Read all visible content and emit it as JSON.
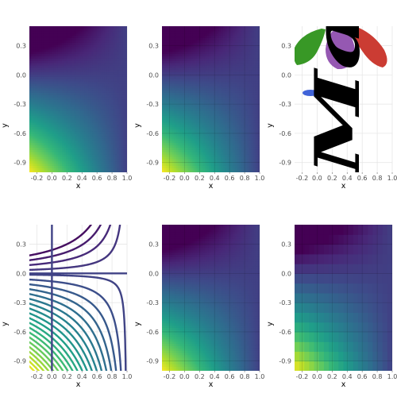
{
  "chart_data": [
    {
      "type": "heatmap",
      "panel": "raster",
      "function": "z = x*y - y",
      "xlim": [
        -0.3,
        1.0
      ],
      "ylim": [
        -1.0,
        0.5
      ],
      "xticks": [
        "-0.2",
        "0.0",
        "0.2",
        "0.4",
        "0.6",
        "0.8",
        "1.0"
      ],
      "yticks": [
        "0.3",
        "0.0",
        "-0.3",
        "-0.6",
        "-0.9"
      ],
      "xlabel": "x",
      "ylabel": "y",
      "colormap": "viridis",
      "grid": true
    },
    {
      "type": "heatmap",
      "panel": "raster-with-grid-overlay",
      "function": "z = x*y - y",
      "xlim": [
        -0.3,
        1.0
      ],
      "ylim": [
        -1.0,
        0.5
      ],
      "xticks": [
        "-0.2",
        "0.0",
        "0.2",
        "0.4",
        "0.6",
        "0.8",
        "1.0"
      ],
      "yticks": [
        "0.3",
        "0.0",
        "-0.3",
        "-0.6",
        "-0.9"
      ],
      "xlabel": "x",
      "ylabel": "y",
      "colormap": "viridis",
      "grid": true
    },
    {
      "type": "image",
      "panel": "logo",
      "xlim": [
        -0.3,
        1.0
      ],
      "ylim": [
        -1.0,
        0.5
      ],
      "xticks": [
        "-0.2",
        "0.0",
        "0.2",
        "0.4",
        "0.6",
        "0.8",
        "1.0"
      ],
      "yticks": [
        "0.3",
        "0.0",
        "-0.3",
        "-0.6",
        "-0.9"
      ],
      "xlabel": "x",
      "ylabel": "y",
      "logo_text": "Makie",
      "grid": true
    },
    {
      "type": "contour",
      "panel": "contour",
      "function": "z = x*y - y",
      "levels": 24,
      "xlim": [
        -0.3,
        1.0
      ],
      "ylim": [
        -1.0,
        0.5
      ],
      "xticks": [
        "-0.2",
        "0.0",
        "0.2",
        "0.4",
        "0.6",
        "0.8",
        "1.0"
      ],
      "yticks": [
        "0.3",
        "0.0",
        "-0.3",
        "-0.6",
        "-0.9"
      ],
      "xlabel": "x",
      "ylabel": "y",
      "colormap": "viridis",
      "grid": true
    },
    {
      "type": "heatmap",
      "panel": "smooth",
      "function": "z = x*y - y",
      "xlim": [
        -0.3,
        1.0
      ],
      "ylim": [
        -1.0,
        0.5
      ],
      "xticks": [
        "-0.2",
        "0.0",
        "0.2",
        "0.4",
        "0.6",
        "0.8",
        "1.0"
      ],
      "yticks": [
        "0.3",
        "0.0",
        "-0.3",
        "-0.6",
        "-0.9"
      ],
      "xlabel": "x",
      "ylabel": "y",
      "colormap": "viridis",
      "grid": true
    },
    {
      "type": "heatmap",
      "panel": "blocky",
      "function": "z = x*y - y",
      "cells": [
        20,
        15
      ],
      "xlim": [
        -0.3,
        1.0
      ],
      "ylim": [
        -1.0,
        0.5
      ],
      "xticks": [
        "-0.2",
        "0.0",
        "0.2",
        "0.4",
        "0.6",
        "0.8",
        "1.0"
      ],
      "yticks": [
        "0.3",
        "0.0",
        "-0.3",
        "-0.6",
        "-0.9"
      ],
      "xlabel": "x",
      "ylabel": "y",
      "colormap": "viridis",
      "grid": true
    }
  ],
  "colors": {
    "viridis": [
      "#440154",
      "#482878",
      "#3e4a89",
      "#31688e",
      "#26828e",
      "#1f9e89",
      "#35b779",
      "#6ece58",
      "#b5de2b",
      "#fde725"
    ],
    "logo_green": "#389826",
    "logo_purple": "#9558b2",
    "logo_red": "#cb3c33",
    "logo_blue": "#4063d8",
    "logo_text": "#000000"
  }
}
